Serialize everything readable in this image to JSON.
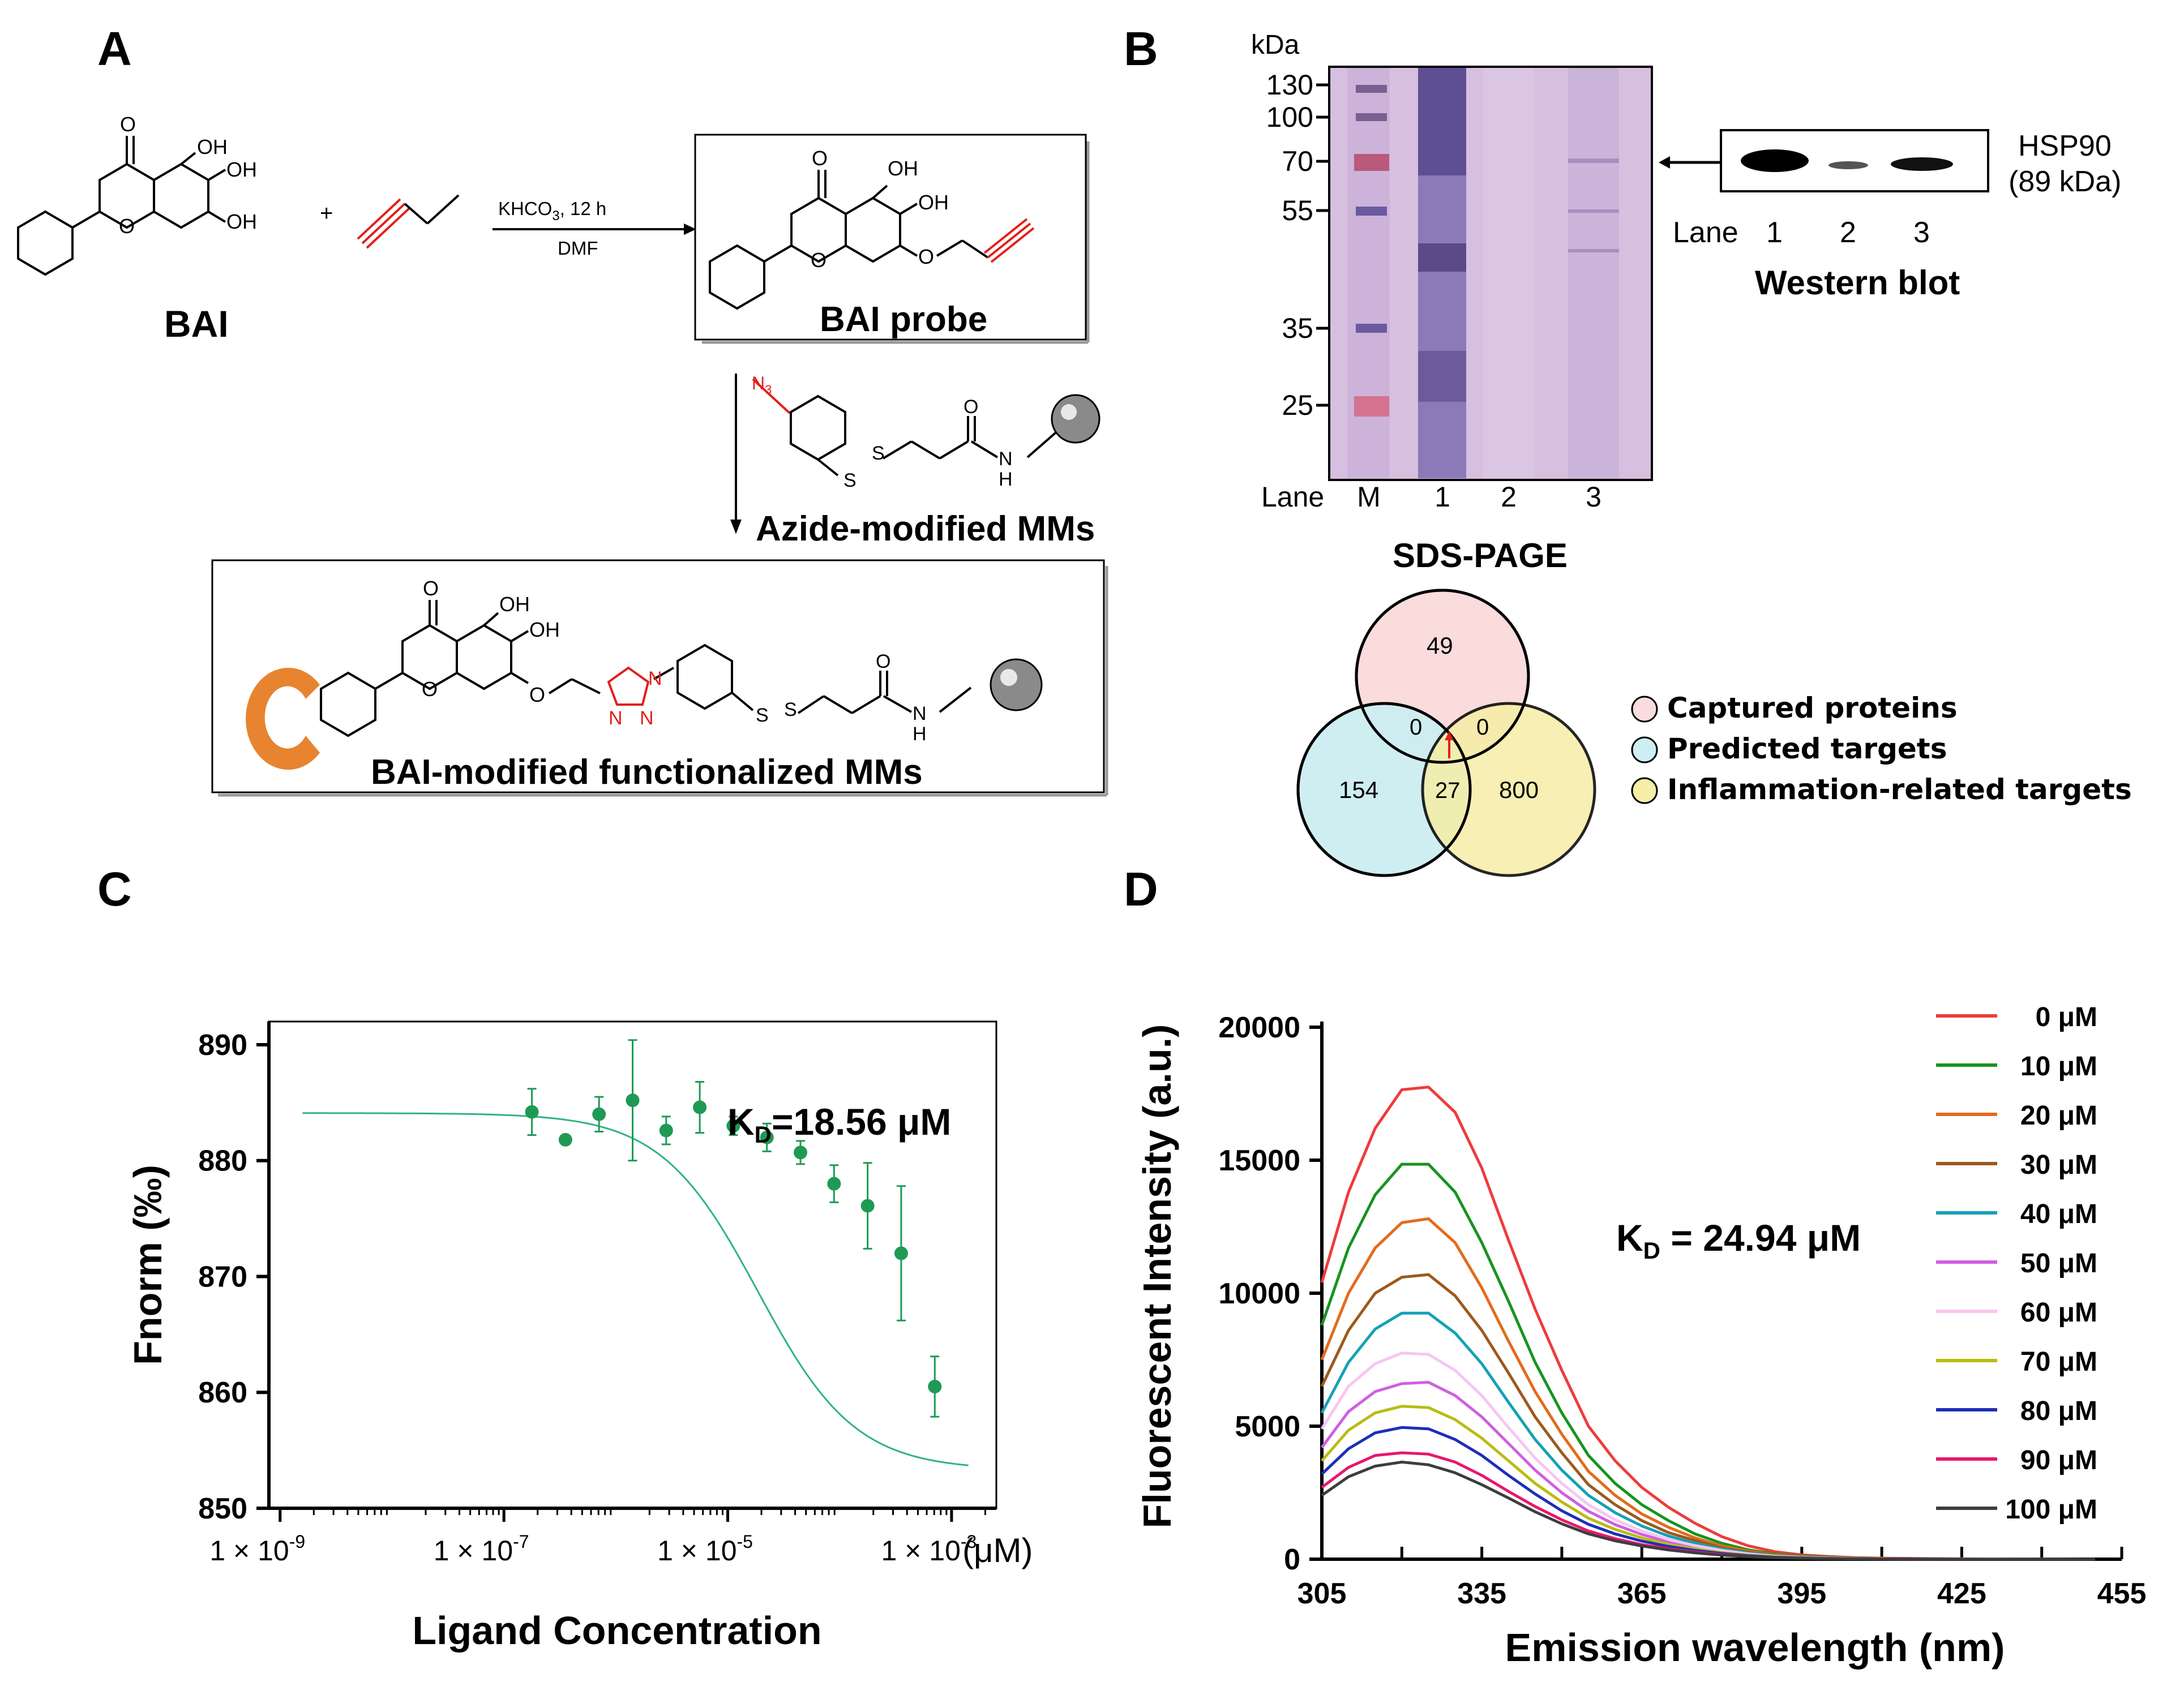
{
  "panels": {
    "a": "A",
    "b": "B",
    "c": "C",
    "d": "D"
  },
  "panel_a": {
    "reactant_name": "BAI",
    "plus": "+",
    "reagent": "KHCO",
    "reagent_sub": "3",
    "reagent_conditions": ",   12 h",
    "solvent": "DMF",
    "probe_name": "BAI probe",
    "azide_beads": "Azide-modified MMs",
    "final_product": "BAI-modified functionalized MMs",
    "atoms": {
      "o": "O",
      "oh": "OH",
      "n": "N",
      "n3": "N",
      "n3_sub": "3",
      "s": "S",
      "h": "H"
    }
  },
  "panel_b": {
    "kda_label": "kDa",
    "markers": [
      "130",
      "100",
      "70",
      "55",
      "35",
      "25"
    ],
    "lane_word": "Lane",
    "gel_lanes": [
      "M",
      "1",
      "2",
      "3"
    ],
    "gel_title": "SDS-PAGE",
    "wb_protein": "HSP90",
    "wb_mw": "(89 kDa)",
    "wb_lanes": [
      "1",
      "2",
      "3"
    ],
    "wb_title": "Western blot",
    "venn": {
      "captured_only": "49",
      "predicted_only": "154",
      "inflammation_only": "800",
      "captured_predicted": "0",
      "captured_inflammation": "0",
      "predicted_inflammation": "27",
      "legend": [
        "Captured proteins",
        "Predicted targets",
        "Inflammation-related targets"
      ],
      "colors": [
        "#f9dcdb",
        "#cdeef2",
        "#f6eda6"
      ]
    }
  },
  "chart_data": [
    {
      "type": "scatter",
      "panel": "C",
      "xlabel": "Ligand Concentration",
      "x_unit": "(μM)",
      "ylabel": "Fnorm (‰)",
      "annotation": "K",
      "annotation_sub": "D",
      "annotation_value": "=18.56 μM",
      "x_scale": "log10",
      "xlim": [
        -9.1,
        -2.6
      ],
      "ylim": [
        850,
        892
      ],
      "xticks": [
        -9,
        -7,
        -5,
        -3
      ],
      "xtick_labels": [
        "1 × 10",
        "1 × 10",
        "1 × 10",
        "1 × 10"
      ],
      "xtick_exponents": [
        "-9",
        "-7",
        "-5",
        "-3"
      ],
      "yticks": [
        850,
        860,
        870,
        880,
        890
      ],
      "points": [
        {
          "logx": -6.75,
          "y": 884.2,
          "err": 2.0
        },
        {
          "logx": -6.45,
          "y": 881.8,
          "err": 0.3
        },
        {
          "logx": -6.15,
          "y": 884.0,
          "err": 1.5
        },
        {
          "logx": -5.85,
          "y": 885.2,
          "err": 5.2
        },
        {
          "logx": -5.55,
          "y": 882.6,
          "err": 1.2
        },
        {
          "logx": -5.25,
          "y": 884.6,
          "err": 2.2
        },
        {
          "logx": -4.95,
          "y": 883.0,
          "err": 0.8
        },
        {
          "logx": -4.65,
          "y": 882.0,
          "err": 1.2
        },
        {
          "logx": -4.35,
          "y": 880.7,
          "err": 1.0
        },
        {
          "logx": -4.05,
          "y": 878.0,
          "err": 1.6
        },
        {
          "logx": -3.75,
          "y": 876.1,
          "err": 3.7
        },
        {
          "logx": -3.45,
          "y": 872.0,
          "err": 5.8
        },
        {
          "logx": -3.15,
          "y": 860.5,
          "err": 2.6
        }
      ],
      "fit": {
        "top": 884.1,
        "bottom": 853.3,
        "log_kd": -4.73,
        "hill": 1.0,
        "xrange": [
          -8.8,
          -2.85
        ]
      }
    },
    {
      "type": "line",
      "panel": "D",
      "xlabel": "Emission wavelength (nm)",
      "ylabel": "Fluorescent Intensity (a.u.)",
      "annotation": "K",
      "annotation_sub": "D",
      "annotation_value": " = 24.94 μM",
      "xlim": [
        305,
        455
      ],
      "ylim": [
        0,
        20000
      ],
      "xticks": [
        305,
        335,
        365,
        395,
        425,
        455
      ],
      "yticks": [
        0,
        5000,
        10000,
        15000,
        20000
      ],
      "x": [
        305,
        310,
        315,
        320,
        325,
        330,
        335,
        340,
        345,
        350,
        355,
        360,
        365,
        370,
        375,
        380,
        385,
        390,
        395,
        400,
        405,
        410,
        415,
        420,
        425,
        430,
        435,
        440,
        445,
        450
      ],
      "series": [
        {
          "name": "0 μM",
          "color": "#ef3b3b",
          "values": [
            10400,
            13800,
            16200,
            17650,
            17750,
            16800,
            14700,
            12000,
            9400,
            7100,
            5000,
            3700,
            2700,
            1950,
            1350,
            850,
            500,
            280,
            160,
            100,
            60,
            40,
            30,
            20,
            15,
            10,
            8,
            5,
            3,
            0
          ]
        },
        {
          "name": "10 μM",
          "color": "#17941f",
          "values": [
            8800,
            11700,
            13700,
            14850,
            14850,
            13800,
            11900,
            9700,
            7400,
            5500,
            3900,
            2850,
            2050,
            1450,
            950,
            600,
            350,
            200,
            120,
            75,
            45,
            30,
            20,
            15,
            10,
            8,
            5,
            3,
            2,
            0
          ]
        },
        {
          "name": "20 μM",
          "color": "#e36b1c",
          "values": [
            7500,
            10000,
            11700,
            12650,
            12800,
            11900,
            10200,
            8200,
            6300,
            4700,
            3300,
            2400,
            1700,
            1200,
            800,
            500,
            300,
            170,
            100,
            60,
            40,
            25,
            15,
            10,
            8,
            5,
            3,
            2,
            1,
            0
          ]
        },
        {
          "name": "30 μM",
          "color": "#9b5a1d",
          "values": [
            6500,
            8600,
            10000,
            10600,
            10700,
            9900,
            8600,
            7000,
            5350,
            4000,
            2800,
            2050,
            1450,
            1000,
            700,
            430,
            260,
            150,
            90,
            55,
            35,
            20,
            15,
            10,
            5,
            3,
            2,
            1,
            0,
            0
          ]
        },
        {
          "name": "40 μM",
          "color": "#16a0b7",
          "values": [
            5500,
            7400,
            8650,
            9250,
            9250,
            8500,
            7350,
            5900,
            4500,
            3350,
            2400,
            1750,
            1250,
            870,
            600,
            380,
            230,
            130,
            80,
            50,
            30,
            20,
            12,
            8,
            5,
            3,
            2,
            1,
            0,
            0
          ]
        },
        {
          "name": "50 μM",
          "color": "#d05fe0",
          "values": [
            4200,
            5550,
            6300,
            6600,
            6650,
            6150,
            5350,
            4350,
            3350,
            2500,
            1800,
            1300,
            930,
            650,
            450,
            290,
            180,
            100,
            60,
            38,
            25,
            15,
            10,
            6,
            4,
            2,
            1,
            0,
            0,
            0
          ]
        },
        {
          "name": "60 μM",
          "color": "#f7c6f0",
          "values": [
            4900,
            6500,
            7350,
            7750,
            7700,
            7100,
            6150,
            4950,
            3800,
            2850,
            2050,
            1480,
            1060,
            740,
            510,
            330,
            200,
            115,
            70,
            44,
            28,
            18,
            11,
            7,
            4,
            2,
            1,
            0,
            0,
            0
          ]
        },
        {
          "name": "70 μM",
          "color": "#b9bc12",
          "values": [
            3700,
            4850,
            5500,
            5750,
            5700,
            5250,
            4550,
            3700,
            2850,
            2150,
            1540,
            1120,
            800,
            560,
            390,
            250,
            155,
            90,
            55,
            35,
            22,
            14,
            9,
            5,
            3,
            2,
            1,
            0,
            0,
            0
          ]
        },
        {
          "name": "80 μM",
          "color": "#1d2fb8",
          "values": [
            3200,
            4150,
            4750,
            4950,
            4900,
            4500,
            3900,
            3150,
            2450,
            1820,
            1310,
            950,
            680,
            480,
            330,
            215,
            130,
            75,
            46,
            29,
            18,
            11,
            7,
            4,
            2,
            1,
            0,
            0,
            0,
            0
          ]
        },
        {
          "name": "90 μM",
          "color": "#e8176f",
          "values": [
            2700,
            3450,
            3900,
            4000,
            3950,
            3650,
            3150,
            2550,
            1980,
            1480,
            1060,
            770,
            550,
            390,
            270,
            175,
            105,
            60,
            37,
            23,
            14,
            9,
            5,
            3,
            2,
            1,
            0,
            0,
            0,
            0
          ]
        },
        {
          "name": "100 μM",
          "color": "#3d3d3d",
          "values": [
            2400,
            3100,
            3500,
            3650,
            3550,
            3250,
            2800,
            2300,
            1780,
            1330,
            950,
            690,
            495,
            350,
            240,
            155,
            95,
            55,
            33,
            20,
            12,
            7,
            4,
            2,
            1,
            0,
            0,
            0,
            0,
            0
          ]
        }
      ]
    }
  ]
}
